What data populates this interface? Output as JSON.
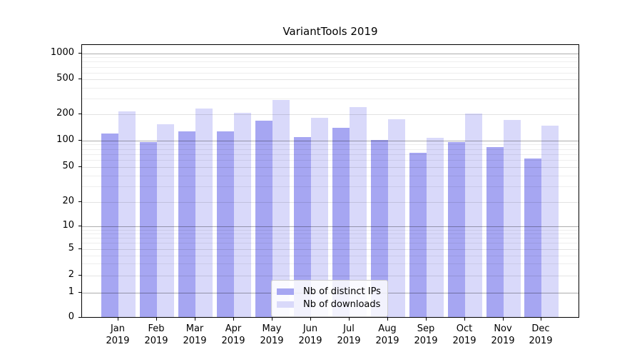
{
  "chart_data": {
    "type": "bar",
    "title": "VariantTools 2019",
    "categories": [
      "Jan",
      "Feb",
      "Mar",
      "Apr",
      "May",
      "Jun",
      "Jul",
      "Aug",
      "Sep",
      "Oct",
      "Nov",
      "Dec"
    ],
    "year_label": "2019",
    "series": [
      {
        "name": "Nb of distinct IPs",
        "color": "#a6a6f2",
        "values": [
          117,
          94,
          125,
          125,
          165,
          108,
          137,
          100,
          71,
          94,
          83,
          61
        ]
      },
      {
        "name": "Nb of downloads",
        "color": "#d9d9fa",
        "values": [
          210,
          150,
          226,
          202,
          283,
          178,
          238,
          171,
          105,
          198,
          167,
          144
        ]
      }
    ],
    "xlabel": "",
    "ylabel": "",
    "yscale": "symlog",
    "yticks": [
      0,
      1,
      2,
      5,
      10,
      20,
      50,
      100,
      200,
      500,
      1000
    ],
    "ylim": [
      0,
      1250
    ],
    "grid": true,
    "legend_position": "lower center"
  }
}
